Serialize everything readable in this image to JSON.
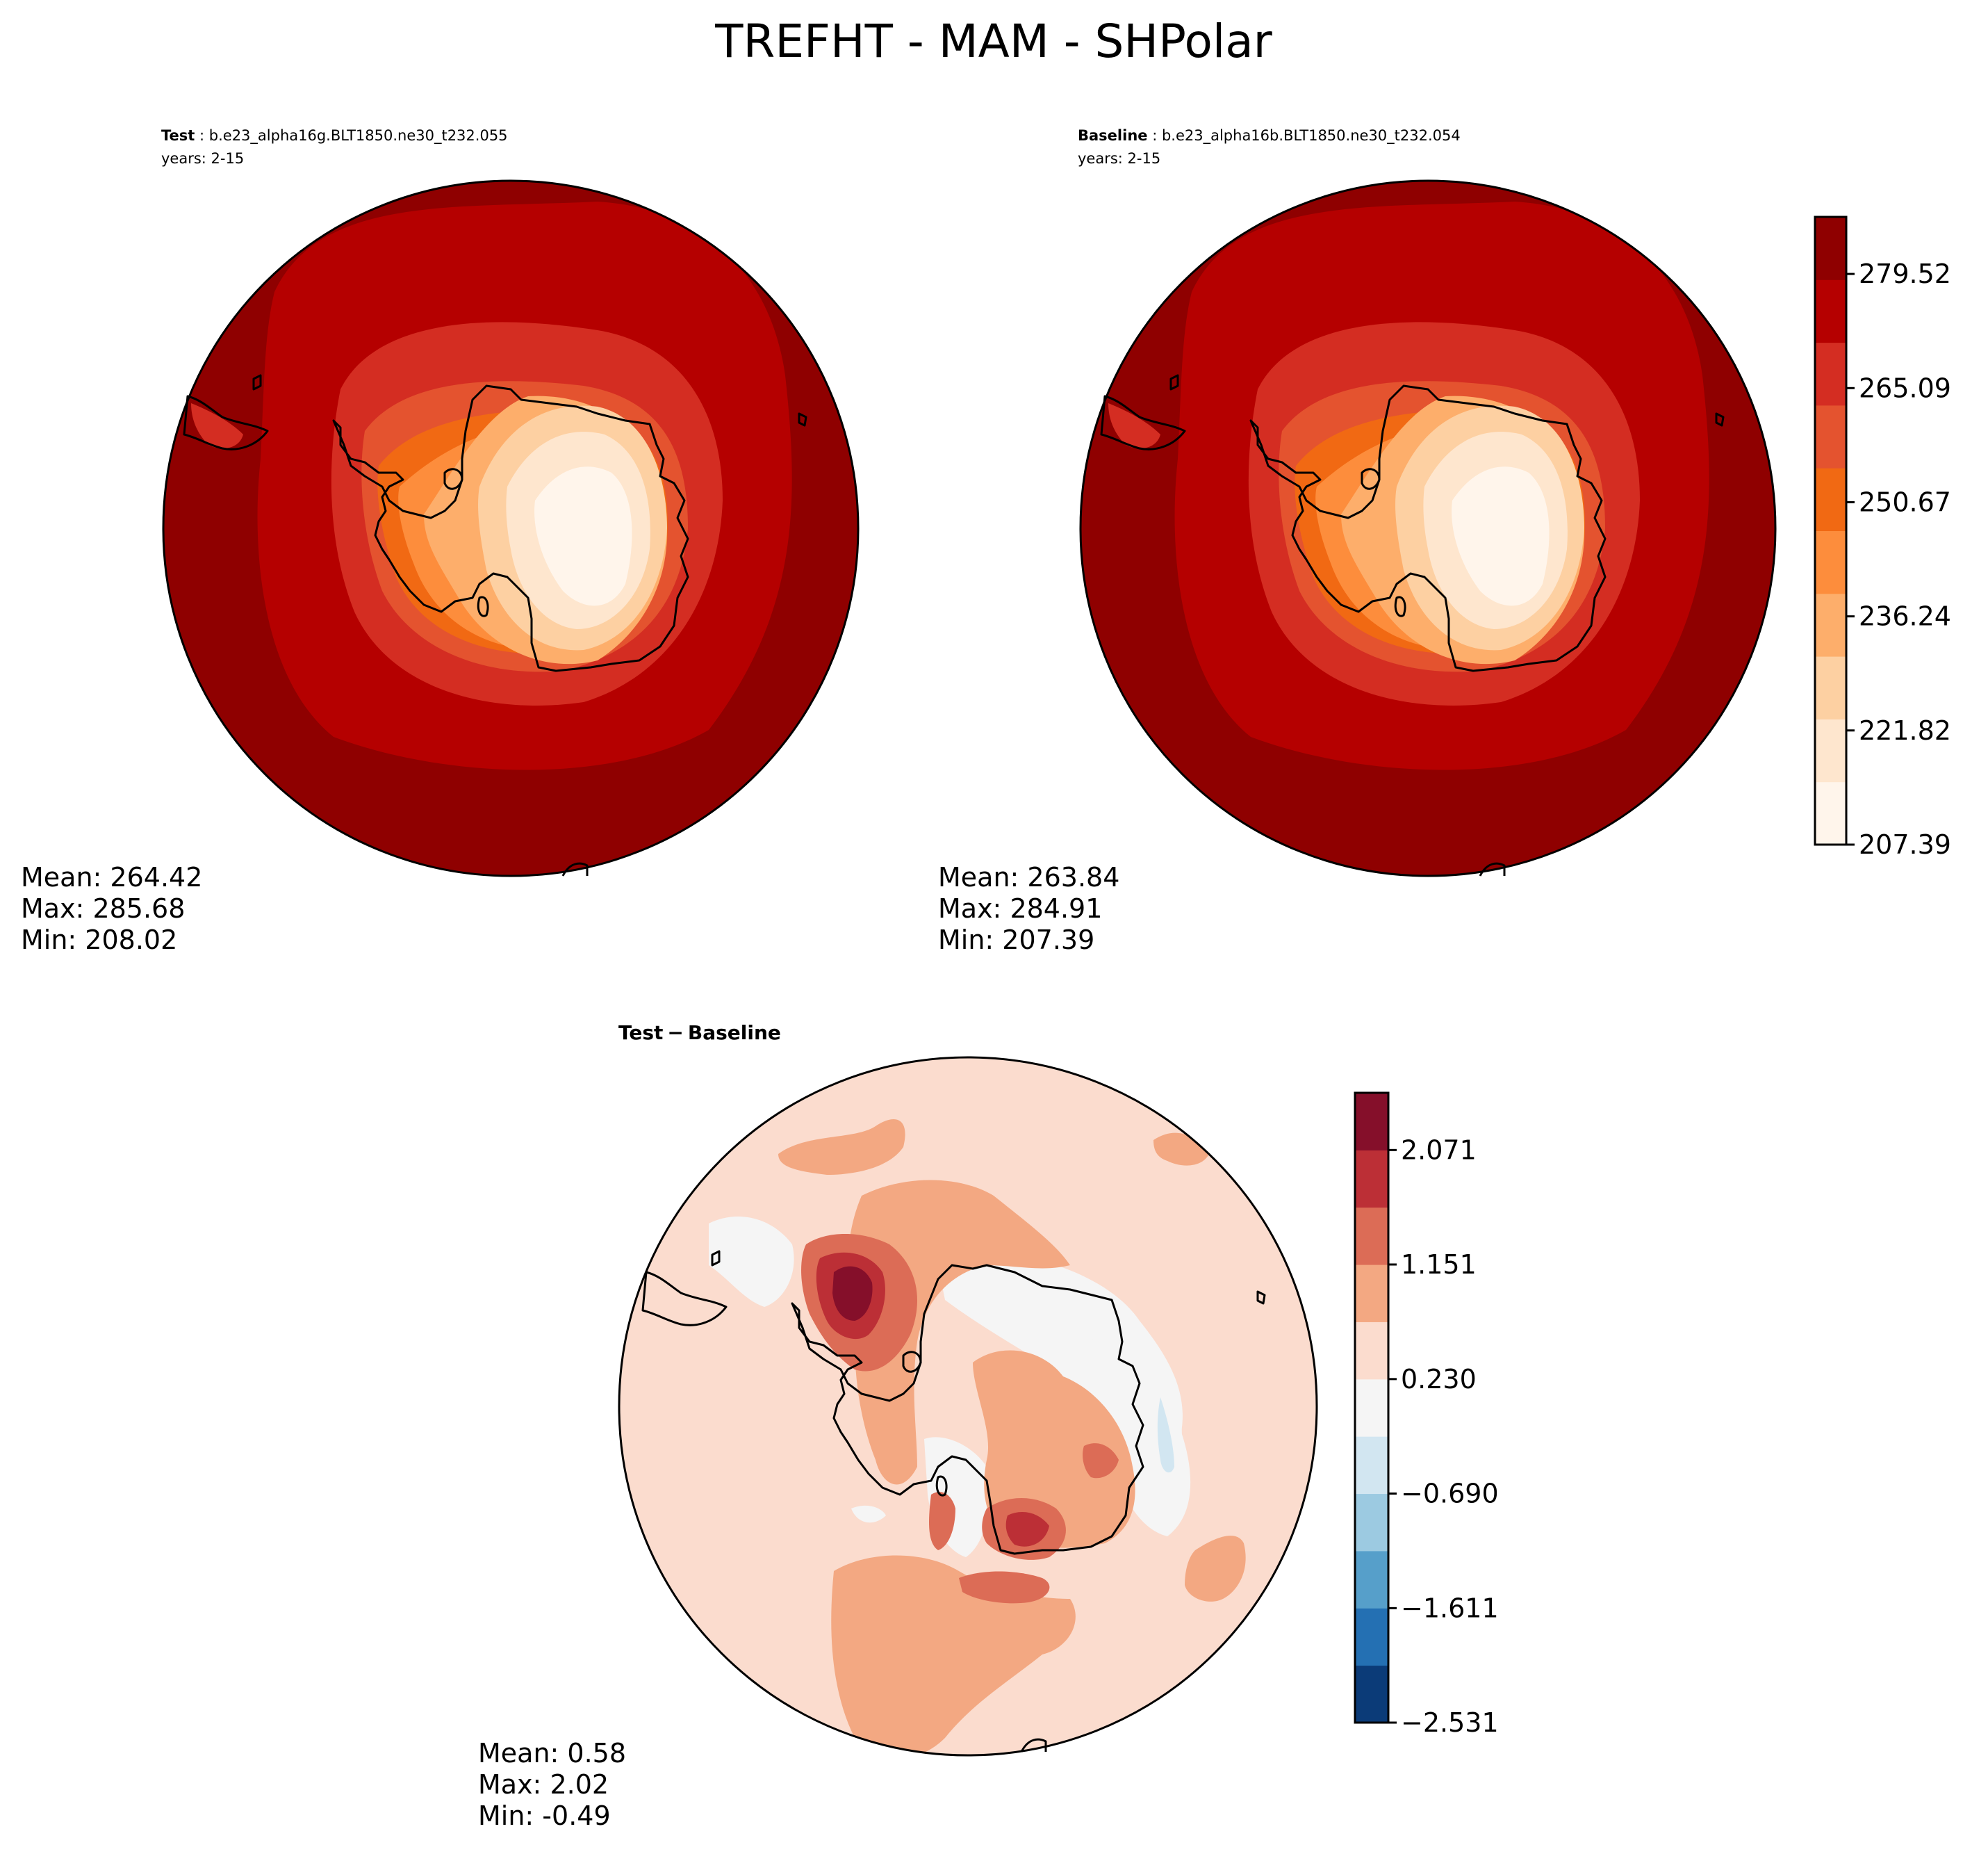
{
  "chart_data": [
    {
      "type": "heatmap",
      "projection": "south polar stereographic",
      "title": "TREFHT - MAM - SHPolar",
      "panel_label": "Test",
      "case_name": "b.e23_alpha16g.BLT1850.ne30_t232.055",
      "years": "years: 2-15",
      "stats": {
        "mean": "Mean: 264.42",
        "max": "Max: 285.68",
        "min": "Min: 208.02"
      },
      "levels": [
        207.39,
        214.6,
        221.82,
        229.03,
        236.24,
        243.46,
        250.67,
        257.88,
        265.09,
        272.31,
        279.52,
        286.73
      ]
    },
    {
      "type": "heatmap",
      "projection": "south polar stereographic",
      "panel_label": "Baseline",
      "case_name": "b.e23_alpha16b.BLT1850.ne30_t232.054",
      "years": "years: 2-15",
      "stats": {
        "mean": "Mean: 263.84",
        "max": "Max: 284.91",
        "min": "Min: 207.39"
      },
      "colorbar": {
        "ticks": [
          "279.52",
          "265.09",
          "250.67",
          "236.24",
          "221.82",
          "207.39"
        ],
        "colors": [
          "#fff5eb",
          "#fee6ce",
          "#fdd0a2",
          "#fdae6b",
          "#fd8d3c",
          "#f16913",
          "#e4532f",
          "#d42d22",
          "#b50000",
          "#8f0000"
        ]
      }
    },
    {
      "type": "heatmap",
      "projection": "south polar stereographic",
      "panel_label": "Test − Baseline",
      "label_parts": {
        "a": "Test",
        "op": "−",
        "b": "Baseline"
      },
      "stats": {
        "mean": "Mean:  0.58",
        "max": "Max:  2.02",
        "min": "Min: -0.49"
      },
      "colorbar": {
        "ticks": [
          "2.071",
          "1.151",
          "0.230",
          "−0.690",
          "−1.611",
          "−2.531"
        ],
        "levels": [
          -2.531,
          -2.071,
          -1.611,
          -1.151,
          -0.69,
          -0.23,
          0.23,
          0.69,
          1.151,
          1.611,
          2.071,
          2.531
        ],
        "colors": [
          "#0b3b78",
          "#2470b3",
          "#569fca",
          "#9ccae1",
          "#d2e6f1",
          "#f5f5f5",
          "#fbdcce",
          "#f3a882",
          "#dc6c56",
          "#bc2f36",
          "#850f2a"
        ]
      }
    }
  ]
}
